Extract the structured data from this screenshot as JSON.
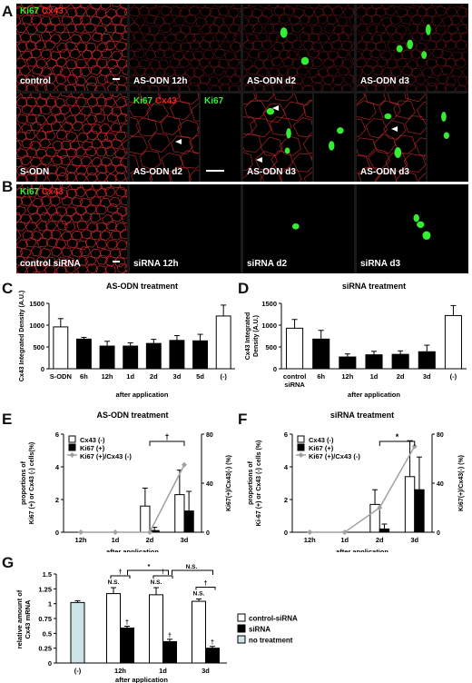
{
  "panel_letters": {
    "A": "A",
    "B": "B",
    "C": "C",
    "D": "D",
    "E": "E",
    "F": "F",
    "G": "G"
  },
  "stains": {
    "ki67": "Ki67",
    "cx43": "Cx43"
  },
  "panelA": {
    "row1": [
      "control",
      "AS-ODN 12h",
      "AS-ODN d2",
      "AS-ODN d3"
    ],
    "row2": [
      "S-ODN",
      "AS-ODN d2",
      "AS-ODN d3",
      "AS-ODN d3"
    ]
  },
  "panelB": [
    "control siRNA",
    "siRNA 12h",
    "siRNA d2",
    "siRNA d3"
  ],
  "colors": {
    "membrane": "#c8282d",
    "ki67": "#33ee33",
    "line": "#a0a0a0"
  },
  "chart_data": [
    {
      "panel": "C",
      "type": "bar",
      "title": "AS-ODN treatment",
      "ylabel": "Cx43 Integrated Density (A.U.)",
      "xlabel": "after application",
      "ylim": [
        0,
        1500
      ],
      "yticks": [
        "0",
        "500",
        "1000",
        "1500"
      ],
      "categories": [
        "S-ODN",
        "6h",
        "12h",
        "1d",
        "2d",
        "3d",
        "5d",
        "(-)"
      ],
      "values": [
        960,
        680,
        520,
        520,
        580,
        650,
        640,
        1210
      ],
      "errors": [
        190,
        40,
        110,
        75,
        95,
        110,
        150,
        250
      ],
      "fills": [
        "white",
        "black",
        "black",
        "black",
        "black",
        "black",
        "black",
        "white"
      ]
    },
    {
      "panel": "D",
      "type": "bar",
      "title": "siRNA treatment",
      "ylabel": "Cx43 Integrated Density (A.U.)",
      "xlabel": "after application",
      "ylim": [
        0,
        1500
      ],
      "yticks": [
        "0",
        "500",
        "1000",
        "1500"
      ],
      "categories": [
        "control siRNA",
        "6h",
        "12h",
        "1d",
        "2d",
        "3d",
        "(-)"
      ],
      "values": [
        930,
        680,
        270,
        320,
        330,
        390,
        1220
      ],
      "errors": [
        200,
        200,
        70,
        80,
        80,
        150,
        230
      ],
      "fills": [
        "white",
        "black",
        "black",
        "black",
        "black",
        "black",
        "white"
      ]
    },
    {
      "panel": "E",
      "type": "bar",
      "title": "AS-ODN treatment",
      "ylabel": "proportions of Ki67 (+) or Cx43 (-) cells(%)",
      "y2label": "Ki67(+)/Cx43(-) (%)",
      "xlabel": "after application",
      "ylim": [
        0,
        6
      ],
      "yticks": [
        "0",
        "2",
        "4",
        "6"
      ],
      "y2lim": [
        0,
        80
      ],
      "y2ticks": [
        "0",
        "40",
        "80"
      ],
      "categories": [
        "12h",
        "1d",
        "2d",
        "3d"
      ],
      "series": [
        {
          "name": "Cx43 (-)",
          "fill": "white",
          "values": [
            0,
            0,
            1.6,
            2.3
          ],
          "errors": [
            0,
            0,
            1.1,
            1.5
          ]
        },
        {
          "name": "Ki67 (+)",
          "fill": "black",
          "values": [
            0,
            0,
            0.1,
            1.3
          ],
          "errors": [
            0,
            0,
            0.2,
            1.2
          ]
        },
        {
          "name": "Ki67 (+)/Cx43 (-)",
          "type": "line",
          "axis": "right",
          "values": [
            0,
            0,
            0,
            55
          ]
        }
      ],
      "annotation": "†"
    },
    {
      "panel": "F",
      "type": "bar",
      "title": "siRNA treatment",
      "ylabel": "proportions of Ki-67 (+) or Cx43 (-) cells (%)",
      "y2label": "Ki67(+)/Cx43(-) (%)",
      "xlabel": "after application",
      "ylim": [
        0,
        6
      ],
      "yticks": [
        "0",
        "2",
        "4",
        "6"
      ],
      "y2lim": [
        0,
        80
      ],
      "y2ticks": [
        "0",
        "40",
        "80"
      ],
      "categories": [
        "12h",
        "1d",
        "2d",
        "3d"
      ],
      "series": [
        {
          "name": "Cx43 (-)",
          "fill": "white",
          "values": [
            0,
            0,
            1.7,
            3.4
          ],
          "errors": [
            0,
            0,
            0.9,
            2.2
          ]
        },
        {
          "name": "Ki67 (+)",
          "fill": "black",
          "values": [
            0,
            0,
            0.2,
            2.6
          ],
          "errors": [
            0,
            0,
            0.3,
            2.0
          ]
        },
        {
          "name": "Ki67 (+)/Cx43 (-)",
          "type": "line",
          "axis": "right",
          "values": [
            0,
            0,
            20,
            70
          ]
        }
      ],
      "annotation": "*"
    },
    {
      "panel": "G",
      "type": "bar",
      "ylabel": "relative amount of Cx43 mRNA",
      "xlabel": "after application",
      "ylim": [
        0,
        1.5
      ],
      "yticks": [
        "0",
        "0.25",
        "0.5",
        "0.75",
        "1",
        "1.25",
        "1.5"
      ],
      "categories": [
        "(-)",
        "12h",
        "1d",
        "3d"
      ],
      "series": [
        {
          "name": "control-siRNA",
          "fill": "white",
          "values": [
            null,
            1.17,
            1.15,
            1.04
          ],
          "errors": [
            null,
            0.1,
            0.12,
            0.04
          ]
        },
        {
          "name": "siRNA",
          "fill": "black",
          "values": [
            null,
            0.59,
            0.36,
            0.25
          ],
          "errors": [
            null,
            0.03,
            0.04,
            0.03
          ]
        },
        {
          "name": "no treatment",
          "fill": "#cde3e6",
          "values": [
            1.02,
            null,
            null,
            null
          ],
          "errors": [
            0.03,
            null,
            null,
            null
          ]
        }
      ],
      "annotations": {
        "dagger": "†",
        "star": "*",
        "ns": "N.S."
      }
    }
  ]
}
